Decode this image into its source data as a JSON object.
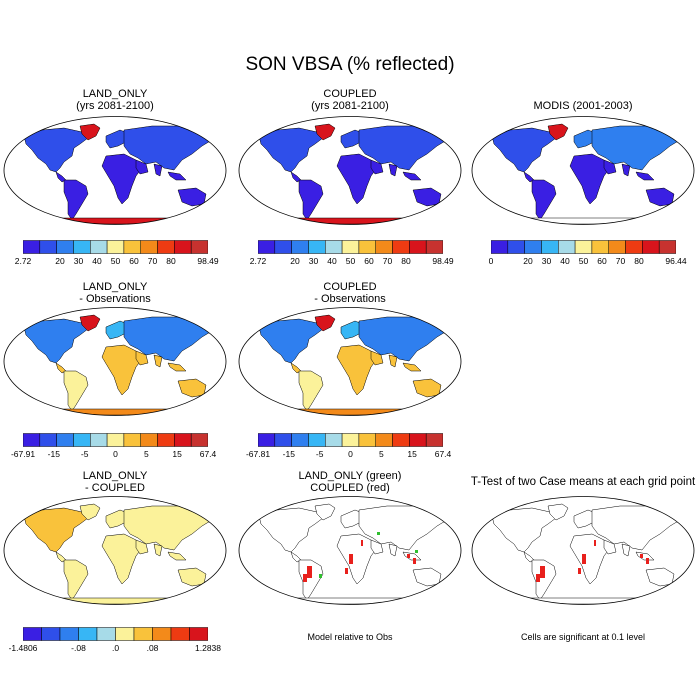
{
  "title": "SON VBSA (% reflected)",
  "panels": [
    {
      "id": "p1",
      "title1": "LAND_ONLY",
      "title2": "(yrs 2081-2100)",
      "palette": "abs",
      "mode": "landonly-abs",
      "bar": {
        "colors": "abs",
        "labels": [
          "2.72",
          "",
          "20",
          "30",
          "40",
          "50",
          "60",
          "70",
          "80",
          "",
          "98.49"
        ]
      }
    },
    {
      "id": "p2",
      "title1": "COUPLED",
      "title2": "(yrs 2081-2100)",
      "palette": "abs",
      "mode": "coupled-abs",
      "bar": {
        "colors": "abs",
        "labels": [
          "2.72",
          "",
          "20",
          "30",
          "40",
          "50",
          "60",
          "70",
          "80",
          "",
          "98.49"
        ]
      }
    },
    {
      "id": "p3",
      "title1": "MODIS (2001-2003)",
      "title2": "",
      "palette": "abs",
      "mode": "modis",
      "bar": {
        "colors": "abs",
        "labels": [
          "0",
          "",
          "20",
          "30",
          "40",
          "50",
          "60",
          "70",
          "80",
          "",
          "96.44"
        ]
      }
    },
    {
      "id": "p4",
      "title1": "LAND_ONLY",
      "title2": "- Observations",
      "palette": "diff",
      "mode": "landonly-obs",
      "bar": {
        "colors": "diff",
        "labels": [
          "-67.91",
          "",
          "-15",
          "",
          "-5",
          "",
          "0",
          "",
          "5",
          "",
          "15",
          "",
          "67.4"
        ]
      }
    },
    {
      "id": "p5",
      "title1": "COUPLED",
      "title2": "- Observations",
      "palette": "diff",
      "mode": "coupled-obs",
      "bar": {
        "colors": "diff",
        "labels": [
          "-67.81",
          "",
          "-15",
          "",
          "-5",
          "",
          "0",
          "",
          "5",
          "",
          "15",
          "",
          "67.4"
        ]
      }
    },
    {
      "id": "p7",
      "title1": "LAND_ONLY",
      "title2": "- COUPLED",
      "palette": "diff2",
      "mode": "lo-minus-c",
      "bar": {
        "colors": "diff2",
        "labels": [
          "-1.4806",
          "",
          "",
          "-.08",
          "",
          "",
          "",
          "",
          "",
          "",
          "1.2838"
        ],
        "labelsPos": [
          0,
          0,
          0,
          0.3,
          0,
          0.5,
          0,
          0.7,
          0,
          0,
          1
        ]
      }
    },
    {
      "id": "p8",
      "title1": "LAND_ONLY (green)",
      "title2": "COUPLED (red)",
      "palette": "sig",
      "mode": "sig-both",
      "note": "Model relative to Obs"
    },
    {
      "id": "p9",
      "title1": "T-Test of two Case means at each grid point",
      "title2": "",
      "palette": "sig",
      "mode": "sig-red",
      "note": "Cells are significant at 0.1 level"
    }
  ],
  "diff2_labels": [
    "-1.4806",
    "-.08",
    ".0",
    ".08",
    "1.2838"
  ],
  "colors": {
    "abs": [
      "#3a1fe3",
      "#2f4fea",
      "#2f7fef",
      "#37b6f5",
      "#a7dbe8",
      "#fbf29a",
      "#f9c23b",
      "#f38a1a",
      "#ee3b12",
      "#d8141c",
      "#c7322f"
    ],
    "diff": [
      "#3a1fe3",
      "#2f4fea",
      "#2f7fef",
      "#37b6f5",
      "#a7dbe8",
      "#fbf29a",
      "#f9c23b",
      "#f38a1a",
      "#ee3b12",
      "#d8141c",
      "#c7322f"
    ],
    "diff2": [
      "#3a1fe3",
      "#2f4fea",
      "#2f7fef",
      "#37b6f5",
      "#a7dbe8",
      "#fbf29a",
      "#f9c23b",
      "#f38a1a",
      "#ee3b12",
      "#d8141c"
    ],
    "sig_red": "#e8201c",
    "sig_green": "#2fbf2f"
  }
}
